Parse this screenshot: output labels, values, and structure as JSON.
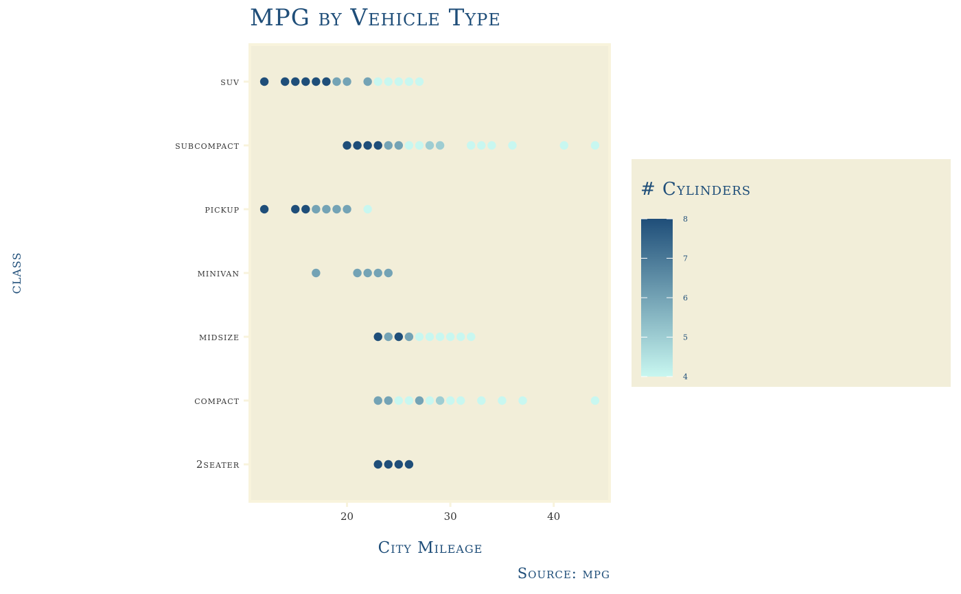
{
  "chart_data": {
    "type": "scatter",
    "title": "MPG by Vehicle Type",
    "xlabel": "City Mileage",
    "ylabel": "class",
    "caption": "Source: mpg",
    "xlim": [
      10.6,
      45.4
    ],
    "x_ticks": [
      20,
      30,
      40
    ],
    "categories": [
      "2seater",
      "compact",
      "midsize",
      "minivan",
      "pickup",
      "subcompact",
      "suv"
    ],
    "color_variable": "# Cylinders",
    "color_range": [
      4,
      8
    ],
    "color_ticks": [
      4,
      5,
      6,
      7,
      8
    ],
    "color_low": "#c8f7f0",
    "color_high": "#1f4e79",
    "panel_background": "#f2eed9",
    "panel_border": "#f8f3dc",
    "legend_position": "right",
    "points": [
      {
        "class": "suv",
        "cty": 12,
        "cyl": 8
      },
      {
        "class": "suv",
        "cty": 14,
        "cyl": 8
      },
      {
        "class": "suv",
        "cty": 15,
        "cyl": 8
      },
      {
        "class": "suv",
        "cty": 16,
        "cyl": 8
      },
      {
        "class": "suv",
        "cty": 17,
        "cyl": 8
      },
      {
        "class": "suv",
        "cty": 18,
        "cyl": 8
      },
      {
        "class": "suv",
        "cty": 19,
        "cyl": 6
      },
      {
        "class": "suv",
        "cty": 20,
        "cyl": 6
      },
      {
        "class": "suv",
        "cty": 22,
        "cyl": 6
      },
      {
        "class": "suv",
        "cty": 23,
        "cyl": 4
      },
      {
        "class": "suv",
        "cty": 24,
        "cyl": 4
      },
      {
        "class": "suv",
        "cty": 25,
        "cyl": 4
      },
      {
        "class": "suv",
        "cty": 26,
        "cyl": 4
      },
      {
        "class": "suv",
        "cty": 27,
        "cyl": 4
      },
      {
        "class": "subcompact",
        "cty": 20,
        "cyl": 8
      },
      {
        "class": "subcompact",
        "cty": 21,
        "cyl": 8
      },
      {
        "class": "subcompact",
        "cty": 22,
        "cyl": 8
      },
      {
        "class": "subcompact",
        "cty": 23,
        "cyl": 8
      },
      {
        "class": "subcompact",
        "cty": 24,
        "cyl": 6
      },
      {
        "class": "subcompact",
        "cty": 25,
        "cyl": 6
      },
      {
        "class": "subcompact",
        "cty": 26,
        "cyl": 4
      },
      {
        "class": "subcompact",
        "cty": 27,
        "cyl": 4
      },
      {
        "class": "subcompact",
        "cty": 28,
        "cyl": 5
      },
      {
        "class": "subcompact",
        "cty": 29,
        "cyl": 5
      },
      {
        "class": "subcompact",
        "cty": 32,
        "cyl": 4
      },
      {
        "class": "subcompact",
        "cty": 33,
        "cyl": 4
      },
      {
        "class": "subcompact",
        "cty": 34,
        "cyl": 4
      },
      {
        "class": "subcompact",
        "cty": 36,
        "cyl": 4
      },
      {
        "class": "subcompact",
        "cty": 41,
        "cyl": 4
      },
      {
        "class": "subcompact",
        "cty": 44,
        "cyl": 4
      },
      {
        "class": "pickup",
        "cty": 12,
        "cyl": 8
      },
      {
        "class": "pickup",
        "cty": 15,
        "cyl": 8
      },
      {
        "class": "pickup",
        "cty": 16,
        "cyl": 8
      },
      {
        "class": "pickup",
        "cty": 17,
        "cyl": 6
      },
      {
        "class": "pickup",
        "cty": 18,
        "cyl": 6
      },
      {
        "class": "pickup",
        "cty": 19,
        "cyl": 6
      },
      {
        "class": "pickup",
        "cty": 20,
        "cyl": 6
      },
      {
        "class": "pickup",
        "cty": 22,
        "cyl": 4
      },
      {
        "class": "minivan",
        "cty": 17,
        "cyl": 6
      },
      {
        "class": "minivan",
        "cty": 21,
        "cyl": 6
      },
      {
        "class": "minivan",
        "cty": 22,
        "cyl": 6
      },
      {
        "class": "minivan",
        "cty": 23,
        "cyl": 6
      },
      {
        "class": "minivan",
        "cty": 24,
        "cyl": 6
      },
      {
        "class": "midsize",
        "cty": 23,
        "cyl": 8
      },
      {
        "class": "midsize",
        "cty": 24,
        "cyl": 6
      },
      {
        "class": "midsize",
        "cty": 25,
        "cyl": 8
      },
      {
        "class": "midsize",
        "cty": 26,
        "cyl": 6
      },
      {
        "class": "midsize",
        "cty": 27,
        "cyl": 4
      },
      {
        "class": "midsize",
        "cty": 28,
        "cyl": 4
      },
      {
        "class": "midsize",
        "cty": 29,
        "cyl": 4
      },
      {
        "class": "midsize",
        "cty": 30,
        "cyl": 4
      },
      {
        "class": "midsize",
        "cty": 31,
        "cyl": 4
      },
      {
        "class": "midsize",
        "cty": 32,
        "cyl": 4
      },
      {
        "class": "compact",
        "cty": 23,
        "cyl": 6
      },
      {
        "class": "compact",
        "cty": 24,
        "cyl": 6
      },
      {
        "class": "compact",
        "cty": 25,
        "cyl": 4
      },
      {
        "class": "compact",
        "cty": 26,
        "cyl": 4
      },
      {
        "class": "compact",
        "cty": 27,
        "cyl": 6
      },
      {
        "class": "compact",
        "cty": 28,
        "cyl": 4
      },
      {
        "class": "compact",
        "cty": 29,
        "cyl": 5
      },
      {
        "class": "compact",
        "cty": 30,
        "cyl": 4
      },
      {
        "class": "compact",
        "cty": 31,
        "cyl": 4
      },
      {
        "class": "compact",
        "cty": 33,
        "cyl": 4
      },
      {
        "class": "compact",
        "cty": 35,
        "cyl": 4
      },
      {
        "class": "compact",
        "cty": 37,
        "cyl": 4
      },
      {
        "class": "compact",
        "cty": 44,
        "cyl": 4
      },
      {
        "class": "2seater",
        "cty": 23,
        "cyl": 8
      },
      {
        "class": "2seater",
        "cty": 24,
        "cyl": 8
      },
      {
        "class": "2seater",
        "cty": 25,
        "cyl": 8
      },
      {
        "class": "2seater",
        "cty": 26,
        "cyl": 8
      }
    ]
  }
}
